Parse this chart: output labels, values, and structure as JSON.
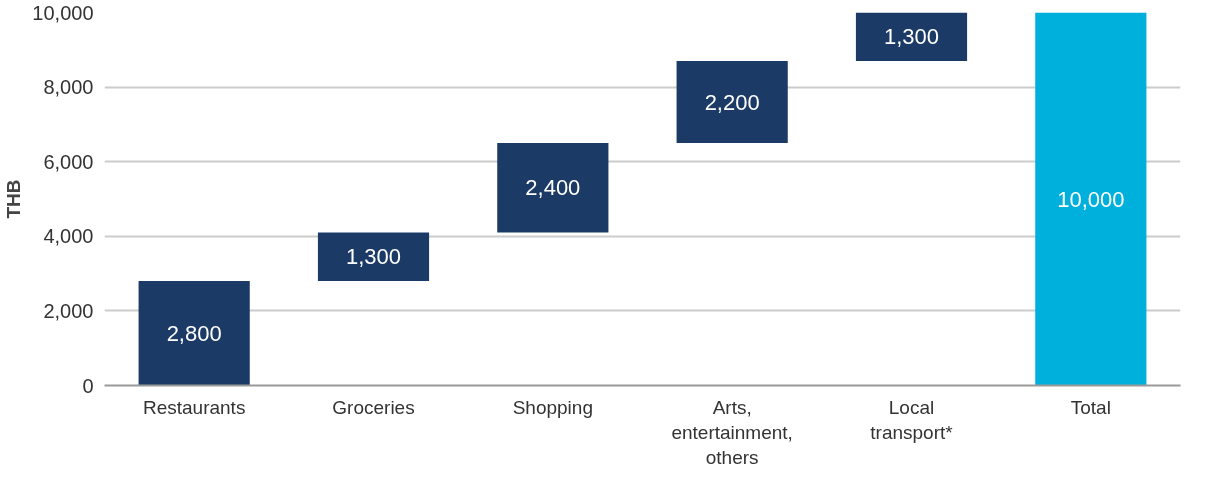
{
  "chart_data": {
    "type": "bar",
    "ylabel": "THB",
    "categories": [
      "Restaurants",
      "Groceries",
      "Shopping",
      "Arts, entertainment, others",
      "Local transport*",
      "Total"
    ],
    "values": [
      2800,
      1300,
      2400,
      2200,
      1300,
      10000
    ],
    "base": [
      0,
      2800,
      4100,
      6500,
      8700,
      0
    ],
    "colors": [
      "#1b3a66",
      "#1b3a66",
      "#1b3a66",
      "#1b3a66",
      "#1b3a66",
      "#00b0dc"
    ],
    "value_labels": [
      "2,800",
      "1,300",
      "2,400",
      "2,200",
      "1,300",
      "10,000"
    ],
    "ylim": [
      0,
      10000
    ],
    "yticks": [
      0,
      {
        "value": 2000,
        "label": "2,000"
      },
      {
        "value": 4000,
        "label": "4,000"
      },
      {
        "value": 6000,
        "label": "6,000"
      },
      {
        "value": 8000,
        "label": "8,000"
      },
      {
        "value": 10000,
        "label": "10,000"
      }
    ],
    "grid": "y"
  }
}
